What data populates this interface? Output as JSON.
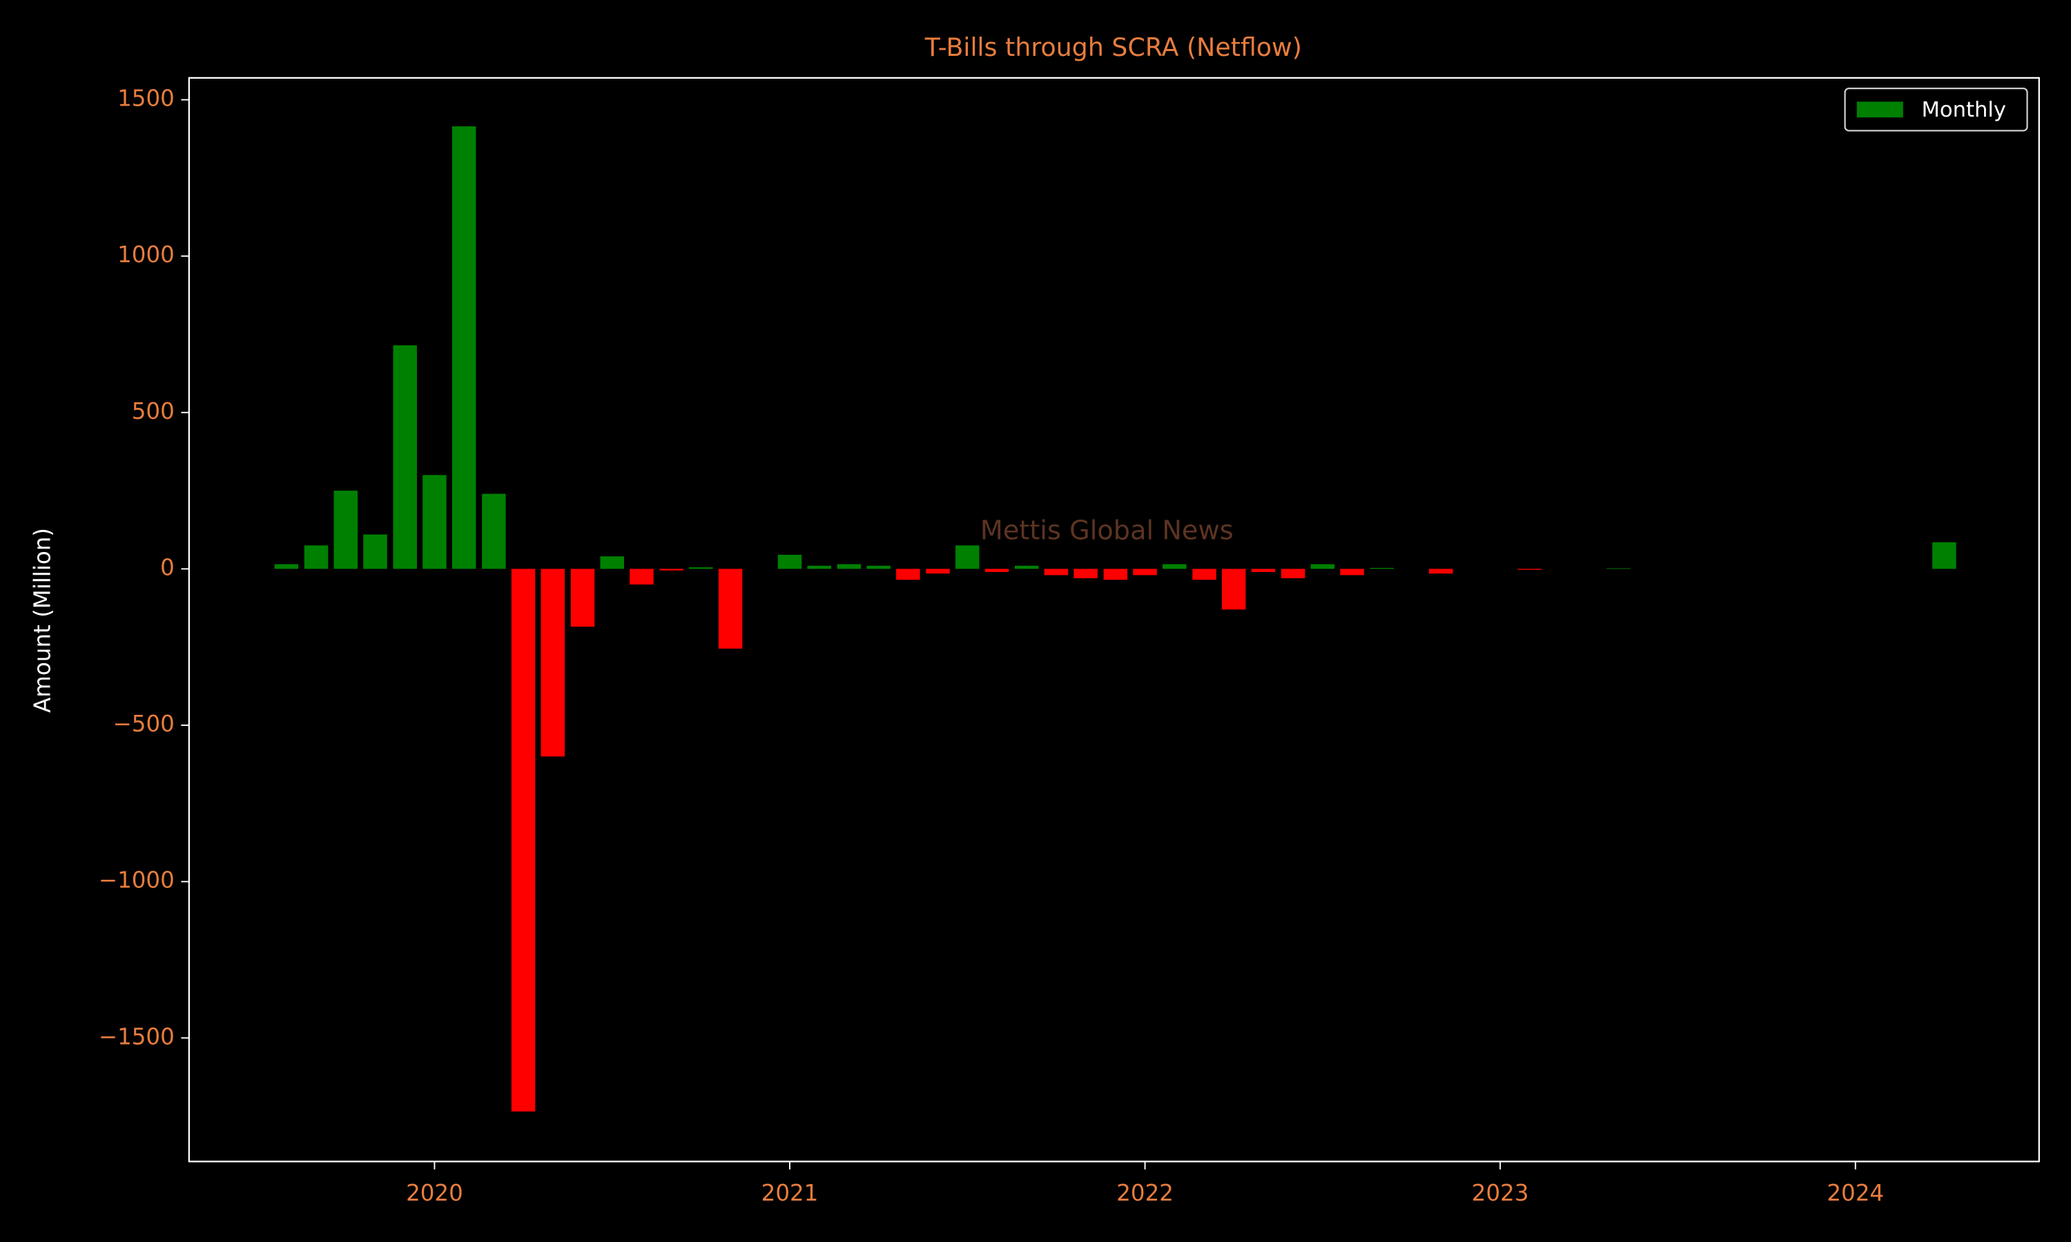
{
  "chart_data": {
    "type": "bar",
    "title": "T-Bills through SCRA (Netflow)",
    "ylabel": "Amount (Million)",
    "watermark": "Mettis Global News",
    "series": [
      {
        "name": "Monthly",
        "color": "#008000",
        "negative_color": "#ff0000",
        "x": [
          2019.583,
          2019.667,
          2019.75,
          2019.833,
          2019.917,
          2020,
          2020.083,
          2020.167,
          2020.25,
          2020.333,
          2020.417,
          2020.5,
          2020.583,
          2020.667,
          2020.75,
          2020.833,
          2021,
          2021.083,
          2021.167,
          2021.25,
          2021.333,
          2021.417,
          2021.5,
          2021.583,
          2021.667,
          2021.75,
          2021.833,
          2021.917,
          2022,
          2022.083,
          2022.167,
          2022.25,
          2022.333,
          2022.417,
          2022.5,
          2022.583,
          2022.667,
          2022.833,
          2023.083,
          2023.333,
          2024.25
        ],
        "values": [
          15,
          75,
          250,
          110,
          715,
          300,
          1415,
          240,
          -1735,
          -600,
          -185,
          40,
          -50,
          -5,
          5,
          -255,
          45,
          10,
          15,
          10,
          -35,
          -15,
          75,
          -10,
          10,
          -20,
          -30,
          -35,
          -20,
          15,
          -35,
          -130,
          -10,
          -30,
          15,
          -20,
          3,
          -15,
          -3,
          2,
          85
        ]
      }
    ],
    "xlim": [
      2019.309,
      2024.517
    ],
    "xticks": [
      2020,
      2021,
      2022,
      2023,
      2024
    ],
    "ylim": [
      -1895,
      1570
    ],
    "yticks": [
      {
        "value": -1500,
        "label": "−1500"
      },
      {
        "value": -1000,
        "label": "−1000"
      },
      {
        "value": -500,
        "label": "−500"
      },
      0,
      500,
      1000,
      1500
    ],
    "bar_width": 0.067,
    "legend": "upper right"
  }
}
